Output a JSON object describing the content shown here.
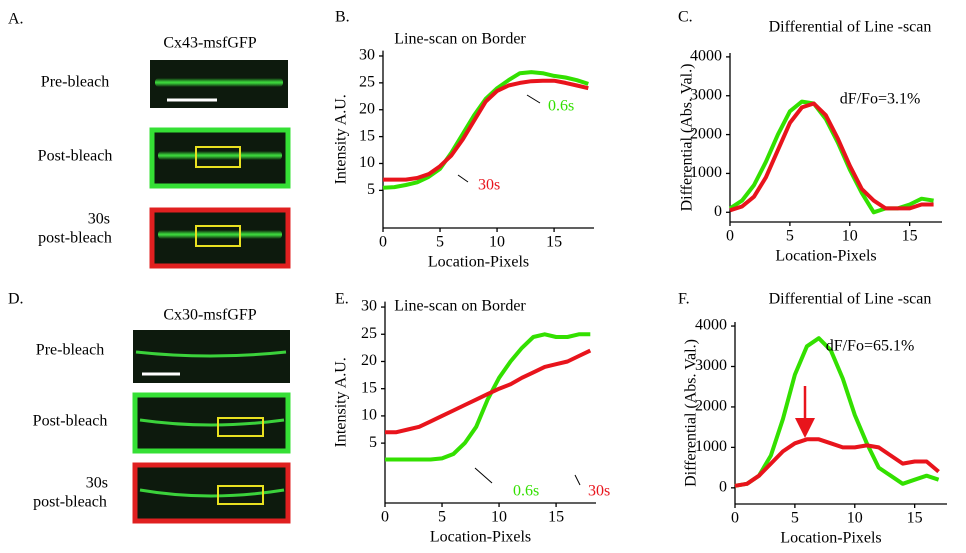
{
  "panels": [
    {
      "letter": "A.",
      "construct": "Cx43-msfGFP",
      "labels": [
        "Pre-bleach",
        "Post-bleach",
        "30s",
        "post-bleach"
      ]
    },
    {
      "letter": "D.",
      "construct": "Cx30-msfGFP",
      "labels": [
        "Pre-bleach",
        "Post-bleach",
        "30s",
        "post-bleach"
      ]
    }
  ],
  "chart_data": [
    {
      "type": "line",
      "letter": "B.",
      "title": "Line-scan on Border",
      "xlabel": "Location-Pixels",
      "ylabel": "Intensity A.U.",
      "x": [
        0,
        1,
        2,
        3,
        4,
        5,
        6,
        7,
        8,
        9,
        10,
        11,
        12,
        13,
        14,
        15,
        16,
        17,
        18
      ],
      "series": [
        {
          "name": "0.6s",
          "color": "#33e000",
          "values": [
            5.5,
            5.6,
            6,
            6.5,
            7.5,
            9,
            12,
            15.5,
            19,
            22,
            24,
            25.5,
            26.8,
            27,
            26.8,
            26.3,
            26,
            25.5,
            24.8
          ]
        },
        {
          "name": "30s",
          "color": "#e8141c",
          "values": [
            7,
            7,
            7,
            7.3,
            8,
            9.5,
            11.5,
            14.5,
            18,
            21.5,
            23.5,
            24.5,
            25,
            25.3,
            25.4,
            25.4,
            25,
            24.5,
            24
          ]
        }
      ],
      "xlim": [
        0,
        18.5
      ],
      "ylim": [
        -2,
        31
      ],
      "xticks": [
        0,
        5,
        10,
        15
      ],
      "yticks": [
        5,
        10,
        15,
        20,
        25,
        30
      ]
    },
    {
      "type": "line",
      "letter": "C.",
      "title": "Differential of Line -scan",
      "xlabel": "Location-Pixels",
      "ylabel": "Differential (Abs. Val.)",
      "annotation": "dF/Fo=3.1%",
      "x": [
        0,
        1,
        2,
        3,
        4,
        5,
        6,
        7,
        8,
        9,
        10,
        11,
        12,
        13,
        14,
        15,
        16,
        17
      ],
      "series": [
        {
          "color": "#33e000",
          "values": [
            100,
            300,
            700,
            1300,
            2000,
            2600,
            2850,
            2800,
            2400,
            1800,
            1100,
            500,
            0,
            100,
            100,
            200,
            350,
            300
          ]
        },
        {
          "color": "#e8141c",
          "values": [
            50,
            150,
            400,
            900,
            1600,
            2300,
            2700,
            2800,
            2500,
            1900,
            1200,
            600,
            300,
            100,
            100,
            100,
            200,
            200
          ]
        }
      ],
      "xlim": [
        0,
        17.7
      ],
      "ylim": [
        -250,
        4100
      ],
      "xticks": [
        0,
        5,
        10,
        15
      ],
      "yticks": [
        0,
        1000,
        2000,
        3000,
        4000
      ]
    },
    {
      "type": "line",
      "letter": "E.",
      "title": "Line-scan on Border",
      "xlabel": "Location-Pixels",
      "ylabel": "Intensity A.U.",
      "x": [
        0,
        1,
        2,
        3,
        4,
        5,
        6,
        7,
        8,
        9,
        10,
        11,
        12,
        13,
        14,
        15,
        16,
        17,
        18
      ],
      "series": [
        {
          "name": "0.6s",
          "color": "#33e000",
          "values": [
            2,
            2,
            2,
            2,
            2,
            2.2,
            3,
            5,
            8,
            13,
            17,
            20,
            22.5,
            24.5,
            25,
            24.5,
            24.5,
            25,
            25
          ]
        },
        {
          "name": "30s",
          "color": "#e8141c",
          "values": [
            7,
            7,
            7.5,
            8,
            9,
            10,
            11,
            12,
            13,
            14,
            15,
            15.8,
            17,
            18,
            19,
            19.5,
            20,
            21,
            22
          ]
        }
      ],
      "xlim": [
        0,
        18.5
      ],
      "ylim": [
        -6,
        31
      ],
      "xticks": [
        0,
        5,
        10,
        15
      ],
      "yticks": [
        5,
        10,
        15,
        20,
        25,
        30
      ]
    },
    {
      "type": "line",
      "letter": "F.",
      "title": "Differential of Line -scan",
      "xlabel": "Location-Pixels",
      "ylabel": "Differential (Abs. Val.)",
      "annotation": "dF/Fo=65.1%",
      "x": [
        0,
        1,
        2,
        3,
        4,
        5,
        6,
        7,
        8,
        9,
        10,
        11,
        12,
        13,
        14,
        15,
        16,
        17
      ],
      "series": [
        {
          "color": "#33e000",
          "values": [
            50,
            100,
            300,
            800,
            1700,
            2800,
            3500,
            3700,
            3400,
            2700,
            1800,
            1100,
            500,
            300,
            100,
            200,
            300,
            200
          ]
        },
        {
          "color": "#e8141c",
          "values": [
            50,
            100,
            300,
            600,
            900,
            1100,
            1200,
            1200,
            1100,
            1000,
            1000,
            1050,
            1000,
            800,
            600,
            650,
            650,
            400
          ]
        }
      ],
      "xlim": [
        0,
        17.7
      ],
      "ylim": [
        -400,
        4100
      ],
      "xticks": [
        0,
        5,
        10,
        15
      ],
      "yticks": [
        0,
        1000,
        2000,
        3000,
        4000
      ]
    }
  ]
}
